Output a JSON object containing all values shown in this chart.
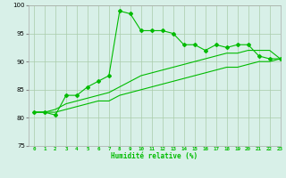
{
  "x": [
    0,
    1,
    2,
    3,
    4,
    5,
    6,
    7,
    8,
    9,
    10,
    11,
    12,
    13,
    14,
    15,
    16,
    17,
    18,
    19,
    20,
    21,
    22,
    23
  ],
  "y_main": [
    81,
    81,
    80.5,
    84,
    84,
    85.5,
    86.5,
    87.5,
    99,
    98.5,
    95.5,
    95.5,
    95.5,
    95,
    93,
    93,
    92,
    93,
    92.5,
    93,
    93,
    91,
    90.5,
    90.5
  ],
  "y_upper": [
    81,
    81,
    81.5,
    82.5,
    83,
    83.5,
    84,
    84.5,
    85.5,
    86.5,
    87.5,
    88,
    88.5,
    89,
    89.5,
    90,
    90.5,
    91,
    91.5,
    91.5,
    92,
    92,
    92,
    90.5
  ],
  "y_lower": [
    81,
    81,
    81,
    81.5,
    82,
    82.5,
    83,
    83,
    84,
    84.5,
    85,
    85.5,
    86,
    86.5,
    87,
    87.5,
    88,
    88.5,
    89,
    89,
    89.5,
    90,
    90,
    90.5
  ],
  "line_color": "#00bb00",
  "bg_color": "#d8f0e8",
  "grid_color": "#aaccaa",
  "xlabel": "Humidité relative (%)",
  "ylim": [
    75,
    100
  ],
  "xlim": [
    -0.5,
    23
  ],
  "yticks": [
    75,
    80,
    85,
    90,
    95,
    100
  ],
  "xticks": [
    0,
    1,
    2,
    3,
    4,
    5,
    6,
    7,
    8,
    9,
    10,
    11,
    12,
    13,
    14,
    15,
    16,
    17,
    18,
    19,
    20,
    21,
    22,
    23
  ]
}
